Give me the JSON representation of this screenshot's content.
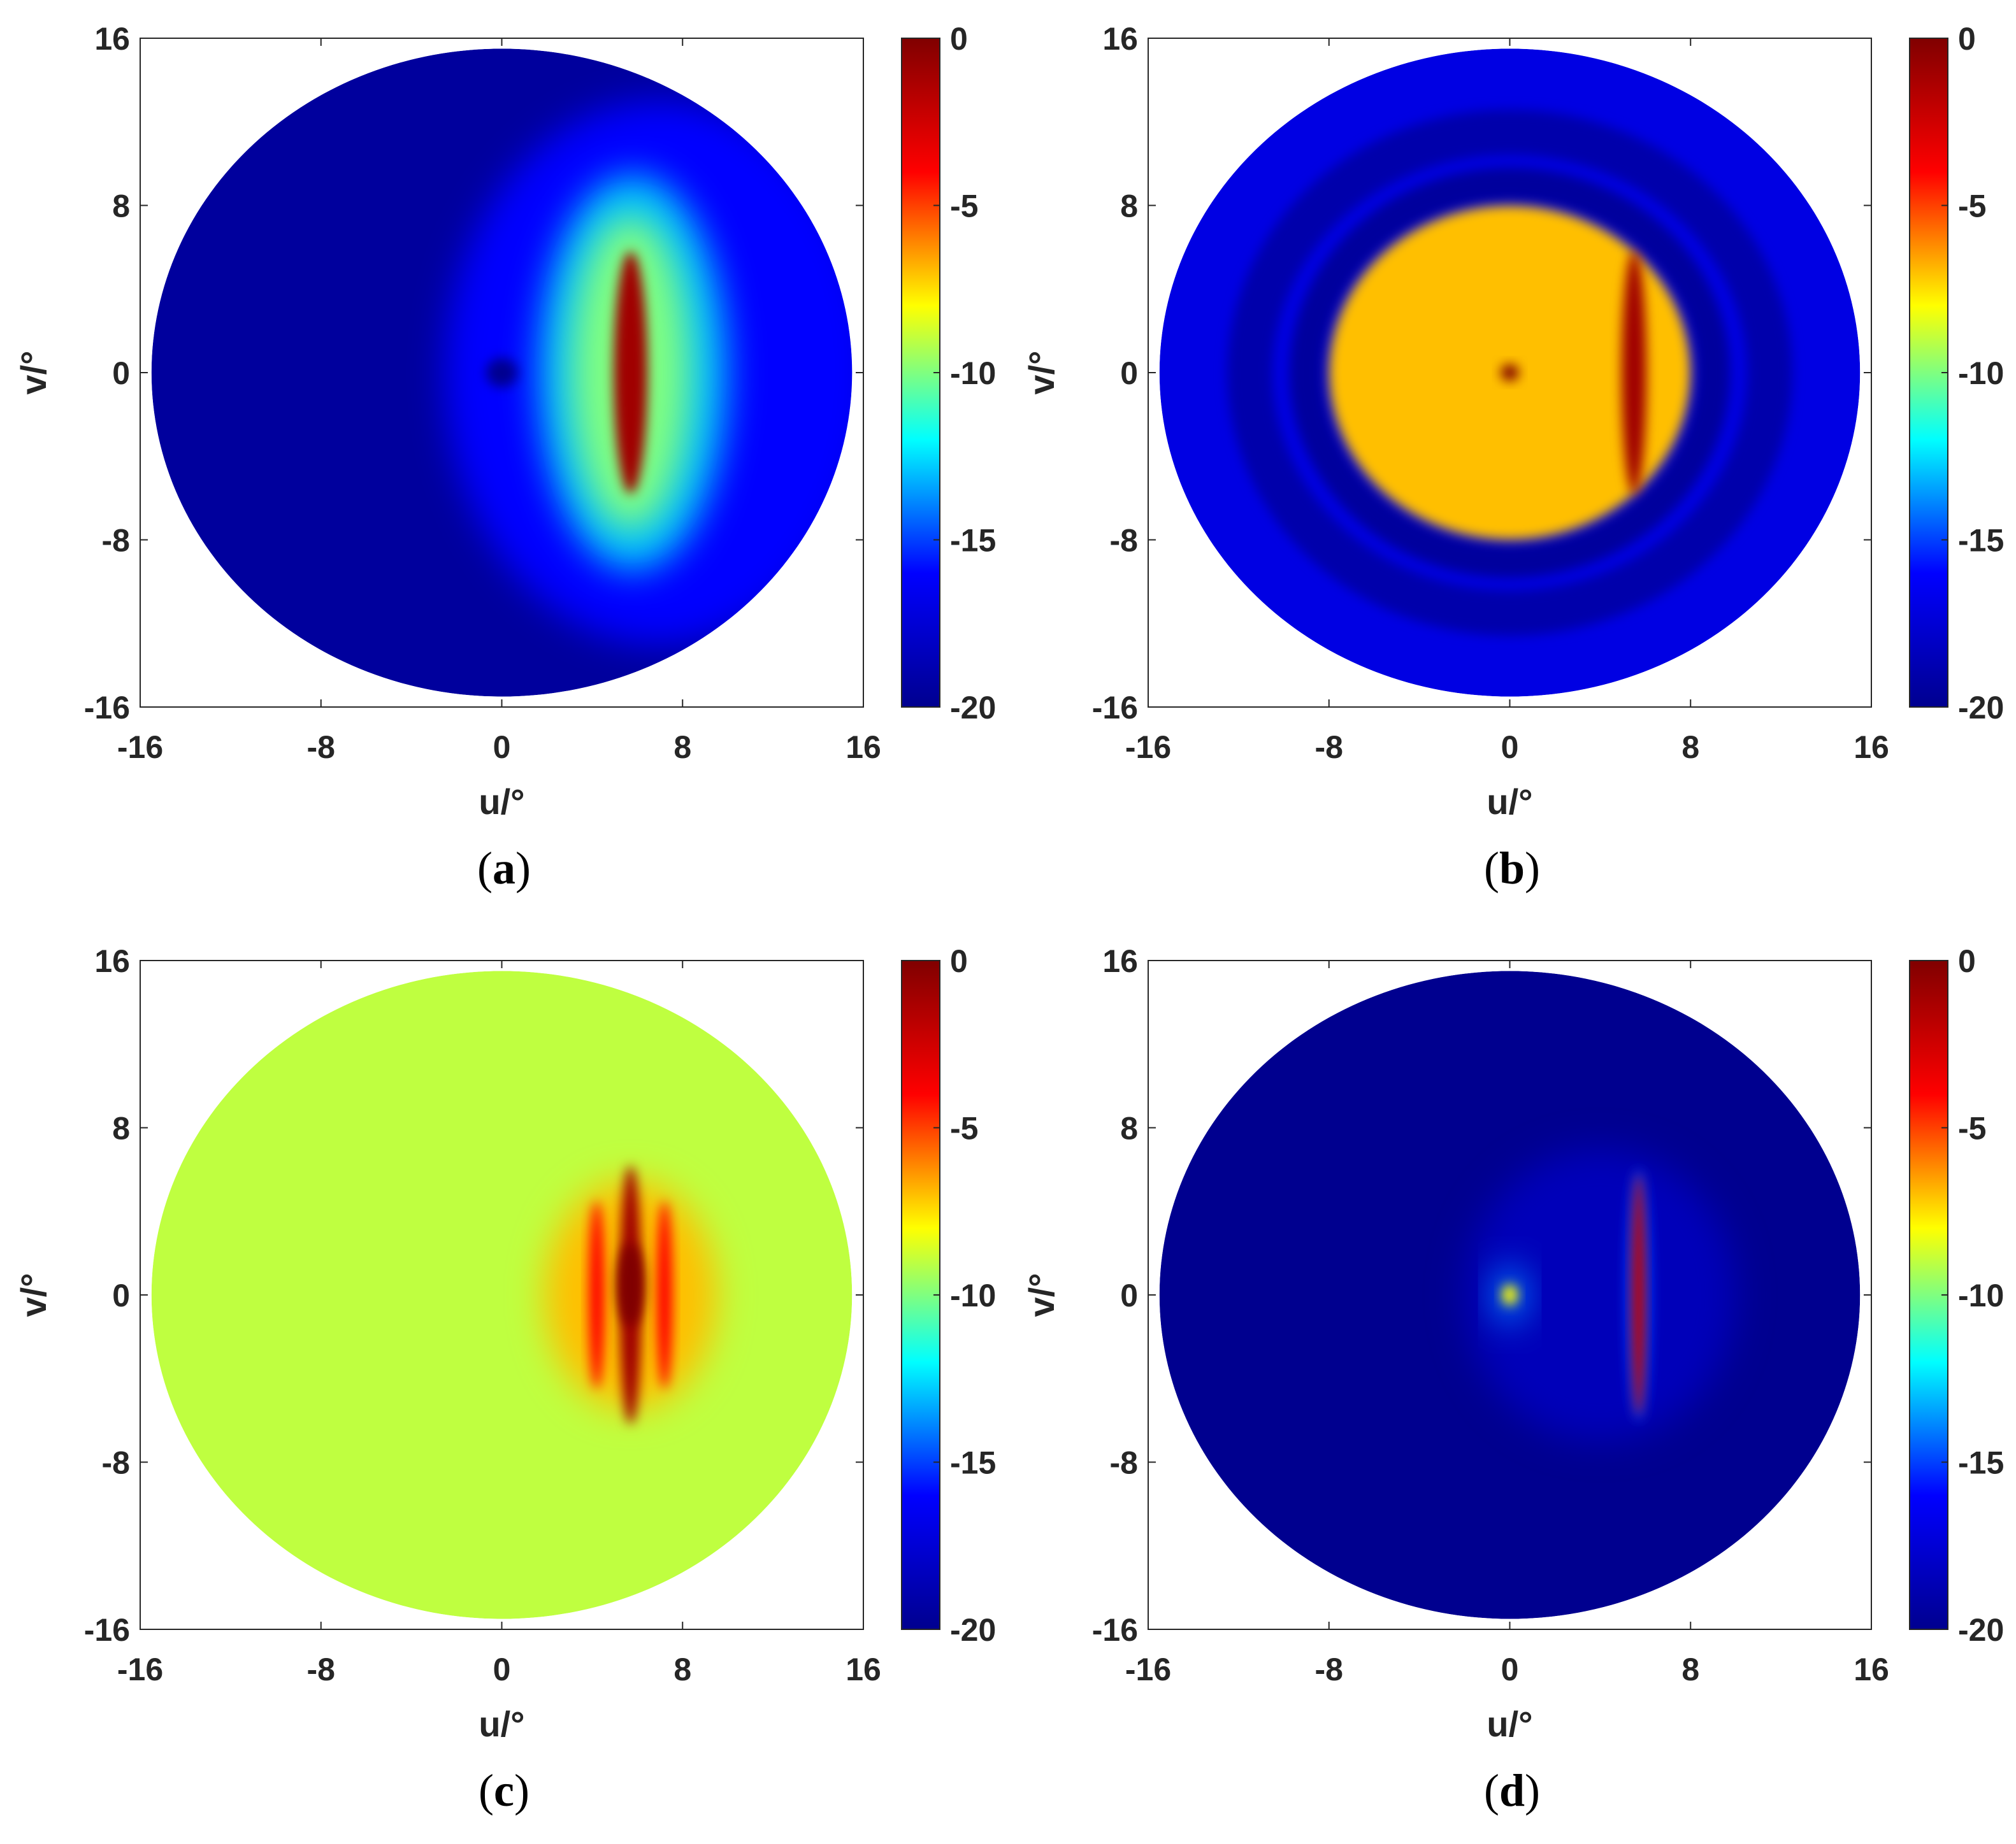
{
  "colorbar": {
    "stops": [
      "#00008f",
      "#0000ff",
      "#00ffff",
      "#ffff00",
      "#ff0000",
      "#800000"
    ],
    "min": -20,
    "max": 0,
    "ticks": [
      "0",
      "-5",
      "-10",
      "-15",
      "-20"
    ]
  },
  "chart_data": [
    {
      "type": "heatmap",
      "panel": "a",
      "caption": "a",
      "xlabel": "u/°",
      "ylabel": "v/°",
      "xlim": [
        -16,
        16
      ],
      "ylim": [
        -16,
        16
      ],
      "x_ticks": [
        "-16",
        "-8",
        "0",
        "8",
        "16"
      ],
      "y_ticks": [
        "16",
        "8",
        "0",
        "-8",
        "-16"
      ],
      "colorbar_range": [
        -20,
        0
      ],
      "colorbar_ticks": [
        "0",
        "-5",
        "-10",
        "-15",
        "-20"
      ],
      "disk_radius": 15.5,
      "background_level": -19.5,
      "features": [
        {
          "kind": "halo",
          "u": 7,
          "v": 0,
          "ru": 9.5,
          "rv": 13,
          "level": -16
        },
        {
          "kind": "halo",
          "u": 5.8,
          "v": 0,
          "ru": 4.2,
          "rv": 9.5,
          "level": -13
        },
        {
          "kind": "halo",
          "u": 5.7,
          "v": 0,
          "ru": 2.6,
          "rv": 7.5,
          "level": -10
        },
        {
          "kind": "beam",
          "u": 5.7,
          "v": 0,
          "ru": 0.75,
          "rv": 5.8,
          "level": -1
        },
        {
          "kind": "null",
          "u": 0,
          "v": 0,
          "ru": 0.7,
          "rv": 0.7,
          "level": -20
        }
      ]
    },
    {
      "type": "heatmap",
      "panel": "b",
      "caption": "b",
      "xlabel": "u/°",
      "ylabel": "v/°",
      "xlim": [
        -16,
        16
      ],
      "ylim": [
        -16,
        16
      ],
      "x_ticks": [
        "-16",
        "-8",
        "0",
        "8",
        "16"
      ],
      "y_ticks": [
        "16",
        "8",
        "0",
        "-8",
        "-16"
      ],
      "colorbar_range": [
        -20,
        0
      ],
      "colorbar_ticks": [
        "0",
        "-5",
        "-10",
        "-15",
        "-20"
      ],
      "disk_radius": 15.5,
      "background_level": -17,
      "features": [
        {
          "kind": "ring",
          "u": 0,
          "v": 0,
          "r": 11.5,
          "width": 2,
          "level": -19
        },
        {
          "kind": "ring",
          "u": 0,
          "v": 0,
          "r": 9,
          "width": 1.5,
          "level": -19.5
        },
        {
          "kind": "disk",
          "u": 0,
          "v": 0,
          "r": 8,
          "level": -7
        },
        {
          "kind": "beam",
          "u": 5.5,
          "v": 0,
          "ru": 0.55,
          "rv": 5.8,
          "level": -1
        },
        {
          "kind": "peak",
          "u": 0,
          "v": 0,
          "ru": 0.4,
          "rv": 0.4,
          "level": 0
        }
      ]
    },
    {
      "type": "heatmap",
      "panel": "c",
      "caption": "c",
      "xlabel": "u/°",
      "ylabel": "v/°",
      "xlim": [
        -16,
        16
      ],
      "ylim": [
        -16,
        16
      ],
      "x_ticks": [
        "-16",
        "-8",
        "0",
        "8",
        "16"
      ],
      "y_ticks": [
        "16",
        "8",
        "0",
        "-8",
        "-16"
      ],
      "colorbar_range": [
        -20,
        0
      ],
      "colorbar_ticks": [
        "0",
        "-5",
        "-10",
        "-15",
        "-20"
      ],
      "disk_radius": 15.5,
      "background_level": -9,
      "features": [
        {
          "kind": "halo",
          "u": 5.7,
          "v": 0,
          "ru": 3.8,
          "rv": 5.5,
          "level": -7
        },
        {
          "kind": "beam",
          "u": 4.2,
          "v": 0,
          "ru": 0.35,
          "rv": 4.5,
          "level": -4
        },
        {
          "kind": "beam",
          "u": 7.2,
          "v": 0,
          "ru": 0.35,
          "rv": 4.5,
          "level": -4
        },
        {
          "kind": "beam",
          "u": 5.7,
          "v": 0,
          "ru": 0.5,
          "rv": 6.2,
          "level": -1
        },
        {
          "kind": "peak",
          "u": 5.7,
          "v": 0.5,
          "ru": 0.6,
          "rv": 2,
          "level": 0
        }
      ]
    },
    {
      "type": "heatmap",
      "panel": "d",
      "caption": "d",
      "xlabel": "u/°",
      "ylabel": "v/°",
      "xlim": [
        -16,
        16
      ],
      "ylim": [
        -16,
        16
      ],
      "x_ticks": [
        "-16",
        "-8",
        "0",
        "8",
        "16"
      ],
      "y_ticks": [
        "16",
        "8",
        "0",
        "-8",
        "-16"
      ],
      "colorbar_range": [
        -20,
        0
      ],
      "colorbar_ticks": [
        "0",
        "-5",
        "-10",
        "-15",
        "-20"
      ],
      "disk_radius": 15.5,
      "background_level": -20,
      "features": [
        {
          "kind": "halo",
          "u": 4,
          "v": 0,
          "ru": 6,
          "rv": 7,
          "level": -18.5
        },
        {
          "kind": "beam",
          "u": 5.7,
          "v": 0,
          "ru": 0.55,
          "rv": 6,
          "level": -15
        },
        {
          "kind": "beam",
          "u": 5.7,
          "v": 0,
          "ru": 0.3,
          "rv": 5.8,
          "level": -2
        },
        {
          "kind": "halo",
          "u": 0,
          "v": 0,
          "ru": 0.7,
          "rv": 1.4,
          "level": -14
        },
        {
          "kind": "peak",
          "u": 0,
          "v": 0,
          "ru": 0.35,
          "rv": 0.5,
          "level": -8
        }
      ]
    }
  ]
}
